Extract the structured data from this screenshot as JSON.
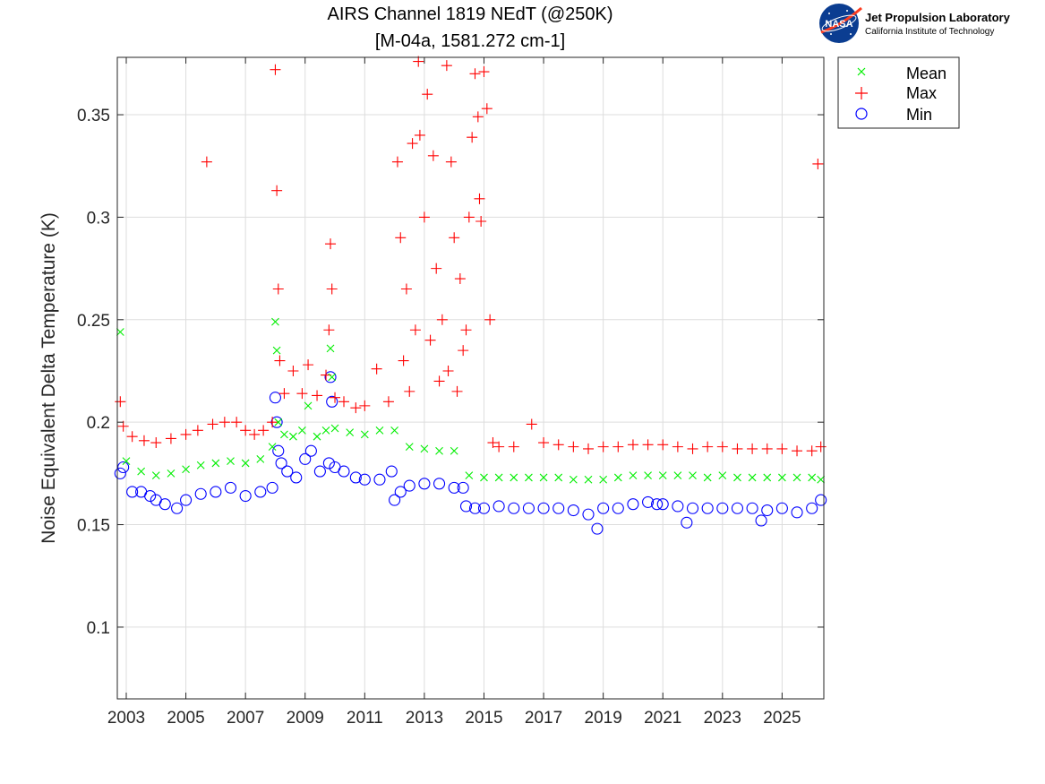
{
  "colors": {
    "mean": "#00ee00",
    "max": "#ff0000",
    "min": "#0000ff",
    "grid": "#dddddd",
    "axis": "#262626"
  },
  "logo": {
    "icon": "nasa-meatball-icon",
    "badge": "NASA",
    "title": "Jet Propulsion Laboratory",
    "subtitle": "California Institute of Technology"
  },
  "chart_data": {
    "type": "scatter",
    "title": [
      "AIRS Channel 1819 NEdT (@250K)",
      "[M-04a, 1581.272 cm-1]"
    ],
    "xlabel": "",
    "ylabel": "Noise Equivalent Delta Temperature (K)",
    "xlim": [
      2002.7,
      2026.4
    ],
    "ylim": [
      0.065,
      0.378
    ],
    "xticks": [
      2003,
      2005,
      2007,
      2009,
      2011,
      2013,
      2015,
      2017,
      2019,
      2021,
      2023,
      2025
    ],
    "yticks": [
      0.1,
      0.15,
      0.2,
      0.25,
      0.3,
      0.35
    ],
    "ytick_labels": [
      "0.1",
      "0.15",
      "0.2",
      "0.25",
      "0.3",
      "0.35"
    ],
    "grid": true,
    "legend": {
      "position": "outside-top-right",
      "entries": [
        "Mean",
        "Max",
        "Min"
      ]
    },
    "series": [
      {
        "name": "Mean",
        "marker": "x",
        "color": "#00ee00",
        "x": [
          2002.8,
          2003.0,
          2003.5,
          2004.0,
          2004.5,
          2005.0,
          2005.5,
          2006.0,
          2006.5,
          2007.0,
          2007.5,
          2007.9,
          2008.0,
          2008.05,
          2008.1,
          2008.3,
          2008.6,
          2008.9,
          2009.1,
          2009.4,
          2009.7,
          2009.85,
          2009.9,
          2010.0,
          2010.5,
          2011.0,
          2011.5,
          2012.0,
          2012.5,
          2013.0,
          2013.5,
          2014.0,
          2014.5,
          2015.0,
          2015.5,
          2016.0,
          2016.5,
          2017.0,
          2017.5,
          2018.0,
          2018.5,
          2019.0,
          2019.5,
          2020.0,
          2020.5,
          2021.0,
          2021.5,
          2022.0,
          2022.5,
          2023.0,
          2023.5,
          2024.0,
          2024.5,
          2025.0,
          2025.5,
          2026.0,
          2026.3
        ],
        "y": [
          0.244,
          0.181,
          0.176,
          0.174,
          0.175,
          0.177,
          0.179,
          0.18,
          0.181,
          0.18,
          0.182,
          0.188,
          0.249,
          0.235,
          0.2,
          0.194,
          0.193,
          0.196,
          0.208,
          0.193,
          0.196,
          0.236,
          0.222,
          0.197,
          0.195,
          0.194,
          0.196,
          0.196,
          0.188,
          0.187,
          0.186,
          0.186,
          0.174,
          0.173,
          0.173,
          0.173,
          0.173,
          0.173,
          0.173,
          0.172,
          0.172,
          0.172,
          0.173,
          0.174,
          0.174,
          0.174,
          0.174,
          0.174,
          0.173,
          0.174,
          0.173,
          0.173,
          0.173,
          0.173,
          0.173,
          0.173,
          0.172
        ]
      },
      {
        "name": "Max",
        "marker": "+",
        "color": "#ff0000",
        "x": [
          2002.8,
          2002.9,
          2003.2,
          2003.6,
          2004.0,
          2004.5,
          2005.0,
          2005.4,
          2005.7,
          2005.9,
          2006.3,
          2006.7,
          2007.0,
          2007.3,
          2007.6,
          2007.9,
          2008.0,
          2008.05,
          2008.1,
          2008.15,
          2008.3,
          2008.6,
          2008.9,
          2009.1,
          2009.4,
          2009.7,
          2009.8,
          2009.85,
          2009.9,
          2010.0,
          2010.3,
          2010.7,
          2011.0,
          2011.4,
          2011.8,
          2012.1,
          2012.2,
          2012.4,
          2012.6,
          2012.8,
          2012.85,
          2013.0,
          2013.1,
          2013.3,
          2013.4,
          2013.6,
          2013.75,
          2013.9,
          2014.0,
          2014.2,
          2014.4,
          2014.5,
          2014.6,
          2014.7,
          2014.8,
          2014.85,
          2014.9,
          2015.0,
          2015.1,
          2015.2,
          2012.3,
          2012.7,
          2013.2,
          2013.8,
          2014.3,
          2012.5,
          2013.5,
          2014.1,
          2015.3,
          2015.5,
          2016.0,
          2016.6,
          2017.0,
          2017.5,
          2018.0,
          2018.5,
          2019.0,
          2019.5,
          2020.0,
          2020.5,
          2021.0,
          2021.5,
          2022.0,
          2022.5,
          2023.0,
          2023.5,
          2024.0,
          2024.5,
          2025.0,
          2025.5,
          2026.0,
          2026.3,
          2026.2
        ],
        "y": [
          0.21,
          0.198,
          0.193,
          0.191,
          0.19,
          0.192,
          0.194,
          0.196,
          0.327,
          0.199,
          0.2,
          0.2,
          0.196,
          0.194,
          0.196,
          0.2,
          0.372,
          0.313,
          0.265,
          0.23,
          0.214,
          0.225,
          0.214,
          0.228,
          0.213,
          0.223,
          0.245,
          0.287,
          0.265,
          0.212,
          0.21,
          0.207,
          0.208,
          0.226,
          0.21,
          0.327,
          0.29,
          0.265,
          0.336,
          0.376,
          0.34,
          0.3,
          0.36,
          0.33,
          0.275,
          0.25,
          0.374,
          0.327,
          0.29,
          0.27,
          0.245,
          0.3,
          0.339,
          0.37,
          0.349,
          0.309,
          0.298,
          0.371,
          0.353,
          0.25,
          0.23,
          0.245,
          0.24,
          0.225,
          0.235,
          0.215,
          0.22,
          0.215,
          0.19,
          0.188,
          0.188,
          0.199,
          0.19,
          0.189,
          0.188,
          0.187,
          0.188,
          0.188,
          0.189,
          0.189,
          0.189,
          0.188,
          0.187,
          0.188,
          0.188,
          0.187,
          0.187,
          0.187,
          0.187,
          0.186,
          0.186,
          0.188,
          0.326
        ]
      },
      {
        "name": "Min",
        "marker": "o",
        "color": "#0000ff",
        "x": [
          2002.8,
          2002.9,
          2003.2,
          2003.5,
          2003.8,
          2004.0,
          2004.3,
          2004.7,
          2005.0,
          2005.5,
          2006.0,
          2006.5,
          2007.0,
          2007.5,
          2007.9,
          2008.0,
          2008.05,
          2008.1,
          2008.2,
          2008.4,
          2008.7,
          2009.0,
          2009.2,
          2009.5,
          2009.8,
          2009.85,
          2009.9,
          2010.0,
          2010.3,
          2010.7,
          2011.0,
          2011.5,
          2011.9,
          2012.0,
          2012.2,
          2012.5,
          2013.0,
          2013.5,
          2014.0,
          2014.3,
          2014.4,
          2014.7,
          2015.0,
          2015.5,
          2016.0,
          2016.5,
          2017.0,
          2017.5,
          2018.0,
          2018.5,
          2018.8,
          2019.0,
          2019.5,
          2020.0,
          2020.5,
          2020.8,
          2021.0,
          2021.5,
          2021.8,
          2022.0,
          2022.5,
          2023.0,
          2023.5,
          2024.0,
          2024.3,
          2024.5,
          2025.0,
          2025.5,
          2026.0,
          2026.3
        ],
        "y": [
          0.175,
          0.178,
          0.166,
          0.166,
          0.164,
          0.162,
          0.16,
          0.158,
          0.162,
          0.165,
          0.166,
          0.168,
          0.164,
          0.166,
          0.168,
          0.212,
          0.2,
          0.186,
          0.18,
          0.176,
          0.173,
          0.182,
          0.186,
          0.176,
          0.18,
          0.222,
          0.21,
          0.178,
          0.176,
          0.173,
          0.172,
          0.172,
          0.176,
          0.162,
          0.166,
          0.169,
          0.17,
          0.17,
          0.168,
          0.168,
          0.159,
          0.158,
          0.158,
          0.159,
          0.158,
          0.158,
          0.158,
          0.158,
          0.157,
          0.155,
          0.148,
          0.158,
          0.158,
          0.16,
          0.161,
          0.16,
          0.16,
          0.159,
          0.151,
          0.158,
          0.158,
          0.158,
          0.158,
          0.158,
          0.152,
          0.157,
          0.158,
          0.156,
          0.158,
          0.162
        ]
      }
    ]
  }
}
